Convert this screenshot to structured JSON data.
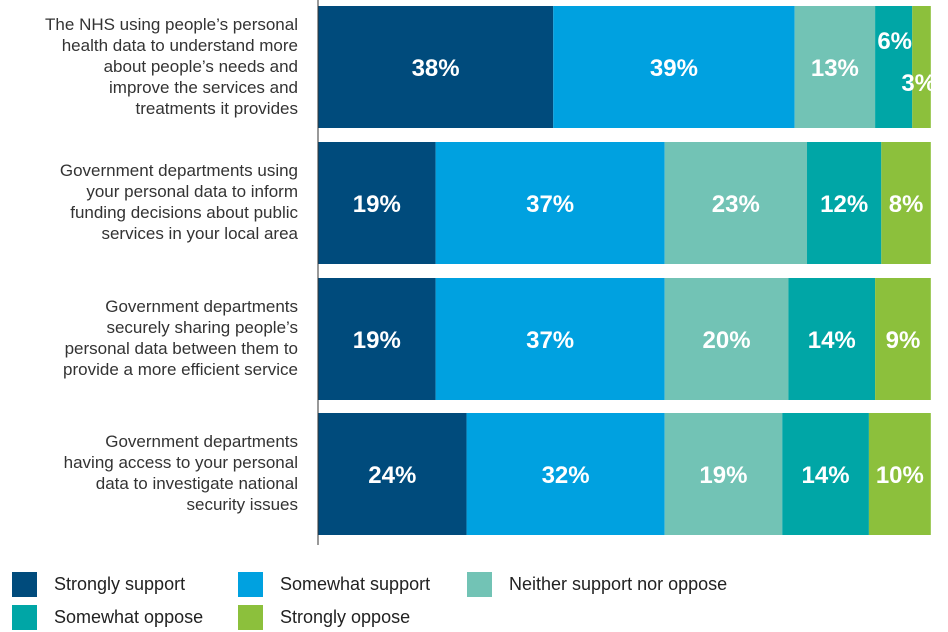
{
  "chart_data": {
    "type": "bar",
    "orientation": "horizontal",
    "stacked": true,
    "categories": [
      "The NHS using people’s personal health data to understand more about people’s needs and improve the services and treatments it provides",
      "Government departments using your personal data to inform funding decisions about public services in your local area",
      "Government departments securely sharing people’s personal data between them to provide a more efficient service",
      "Government departments having access to your personal data to investigate national security issues"
    ],
    "category_lines": [
      [
        "The NHS using people’s personal",
        "health data to understand more",
        "about people’s needs and",
        "improve the services and",
        "treatments it provides"
      ],
      [
        "Government departments using",
        "your personal data to inform",
        "funding decisions about public",
        "services in your local area"
      ],
      [
        "Government departments",
        "securely sharing people’s",
        "personal data between them to",
        "provide a more efficient service"
      ],
      [
        "Government departments",
        "having access to your personal",
        "data to investigate national",
        "security issues"
      ]
    ],
    "series": [
      {
        "name": "Strongly support",
        "color": "#004b7c",
        "values": [
          38,
          19,
          19,
          24
        ],
        "labels": [
          "38%",
          "19%",
          "19%",
          "24%"
        ]
      },
      {
        "name": "Somewhat support",
        "color": "#00a1e0",
        "values": [
          39,
          37,
          37,
          32
        ],
        "labels": [
          "39%",
          "37%",
          "37%",
          "32%"
        ]
      },
      {
        "name": "Neither support nor oppose",
        "color": "#72c3b5",
        "values": [
          13,
          23,
          20,
          19
        ],
        "labels": [
          "13%",
          "23%",
          "20%",
          "19%"
        ]
      },
      {
        "name": "Somewhat oppose",
        "color": "#00a6a6",
        "values": [
          6,
          12,
          14,
          14
        ],
        "labels": [
          "6%",
          "12%",
          "14%",
          "14%"
        ]
      },
      {
        "name": "Strongly oppose",
        "color": "#8cc03c",
        "values": [
          3,
          8,
          9,
          10
        ],
        "labels": [
          "3%",
          "8%",
          "9%",
          "10%"
        ]
      }
    ],
    "xlim": [
      0,
      100
    ],
    "grid": false,
    "legend_position": "bottom"
  }
}
